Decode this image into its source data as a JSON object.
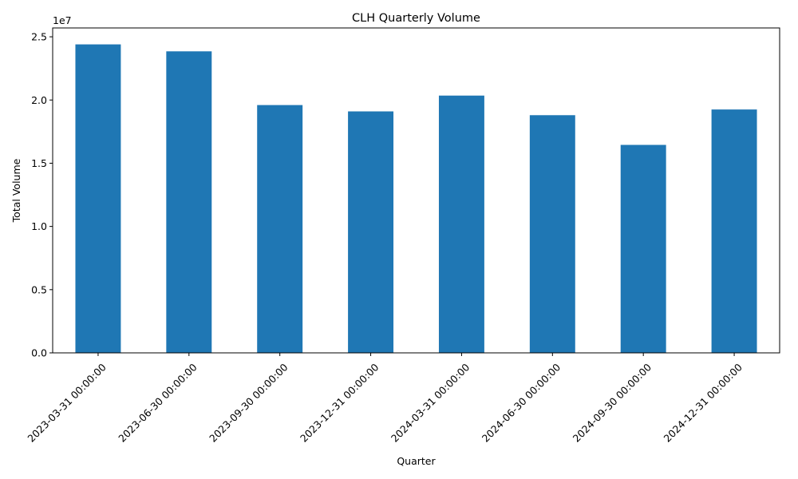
{
  "chart_data": {
    "type": "bar",
    "title": "CLH Quarterly Volume",
    "xlabel": "Quarter",
    "ylabel": "Total Volume",
    "y_offset_label": "1e7",
    "y_scale_divisor": 10000000,
    "categories": [
      "2023-03-31 00:00:00",
      "2023-06-30 00:00:00",
      "2023-09-30 00:00:00",
      "2023-12-31 00:00:00",
      "2024-03-31 00:00:00",
      "2024-06-30 00:00:00",
      "2024-09-30 00:00:00",
      "2024-12-31 00:00:00"
    ],
    "values": [
      24400000,
      23850000,
      19600000,
      19100000,
      20350000,
      18800000,
      16450000,
      19250000
    ],
    "ylim": [
      0,
      25700000
    ],
    "yticks": [
      0,
      5000000,
      10000000,
      15000000,
      20000000,
      25000000
    ],
    "ytick_labels": [
      "0.0",
      "0.5",
      "1.0",
      "1.5",
      "2.0",
      "2.5"
    ],
    "bar_color": "#1f77b4",
    "grid": false,
    "legend": "none"
  }
}
